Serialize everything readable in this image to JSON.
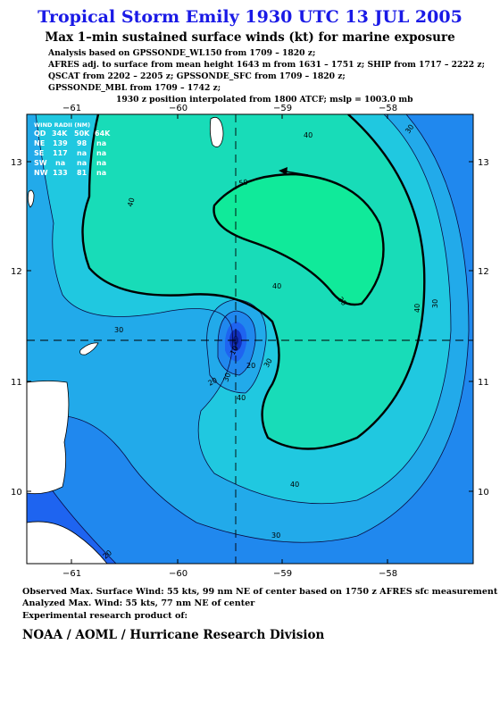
{
  "header": {
    "title": "Tropical Storm Emily 1930 UTC 13 JUL 2005",
    "subtitle": "Max 1–min sustained surface winds (kt) for marine exposure",
    "analysis_lines": [
      "Analysis based on  GPSSONDE_WL150 from 1709 – 1820 z;",
      "AFRES adj. to surface from mean height 1643 m from 1631 – 1751 z;  SHIP from 1717 – 2222 z;",
      "QSCAT from 2202 – 2205 z;  GPSSONDE_SFC from 1709 – 1820 z;",
      "GPSSONDE_MBL from 1709 – 1742 z;"
    ],
    "position_line": "1930 z position interpolated from 1800 ATCF; mslp = 1003.0 mb"
  },
  "map": {
    "lon_ticks": [
      "−61",
      "−60",
      "−59",
      "−58"
    ],
    "lat_ticks": [
      "13",
      "12",
      "11",
      "10"
    ],
    "contour_labels": [
      "50",
      "40",
      "30",
      "40",
      "30",
      "40",
      "30",
      "40",
      "30",
      "40",
      "30",
      "20",
      "10",
      "20",
      "30",
      "30",
      "40",
      "20"
    ],
    "wind_radii": {
      "title": "WIND RADII (NM)",
      "header": [
        "QD",
        "34K",
        "50K",
        "64K"
      ],
      "rows": [
        [
          "NE",
          "139",
          "98",
          "na"
        ],
        [
          "SE",
          "117",
          "na",
          "na"
        ],
        [
          "SW",
          "na",
          "na",
          "na"
        ],
        [
          "NW",
          "133",
          "81",
          "na"
        ]
      ]
    },
    "colors": {
      "ocean_outer": "#1e64f0",
      "band_20": "#2088ee",
      "band_30": "#22aaea",
      "band_40": "#20c8e0",
      "band_50": "#18dcb8",
      "band_55": "#10ea9a",
      "core": "#1030c0",
      "land": "#ffffff"
    }
  },
  "footer": {
    "observed": "Observed Max. Surface Wind: 55 kts, 99 nm NE of center based on 1750 z AFRES sfc measurement",
    "analyzed": "Analyzed Max. Wind: 55 kts, 77 nm NE of center",
    "product": "Experimental research product of:",
    "org": "NOAA / AOML / Hurricane Research Division"
  }
}
